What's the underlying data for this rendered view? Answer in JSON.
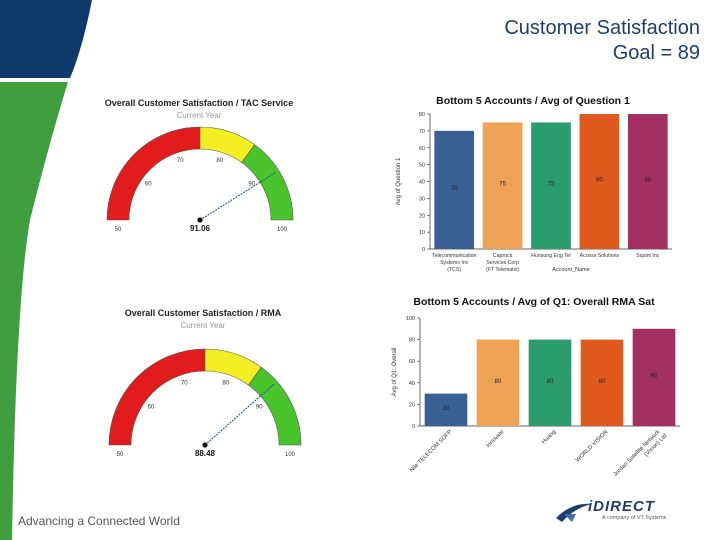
{
  "header": {
    "title_line1": "Customer Satisfaction",
    "title_line2": "Goal = 89"
  },
  "footer": {
    "tagline": "Advancing a Connected World"
  },
  "logo": {
    "brand": "iDIRECT",
    "subtitle": "A company of VT Systems"
  },
  "colors": {
    "navy": "#0d3a6b",
    "green_swoosh": "#3f9f3f",
    "red": "#e21c1c",
    "yellow": "#f3ef22",
    "green": "#49c42a"
  },
  "gauges": [
    {
      "title": "Overall Customer Satisfaction / TAC Service",
      "subtitle": "Current Year",
      "min": 50,
      "max": 100,
      "ticks": [
        "50",
        "60",
        "70",
        "80",
        "90",
        "100"
      ],
      "value": 91.06,
      "value_label": "91.06"
    },
    {
      "title": "Overall Customer Satisfaction / RMA",
      "subtitle": "Current Year",
      "min": 50,
      "max": 100,
      "ticks": [
        "50",
        "60",
        "70",
        "80",
        "90",
        "100"
      ],
      "value": 88.48,
      "value_label": "88.48"
    }
  ],
  "chart_data": [
    {
      "type": "bar",
      "title": "Bottom 5 Accounts / Avg of Question 1",
      "ylabel": "Avg of Question 1",
      "xlabel": "Account_Name",
      "ylim": [
        0,
        80
      ],
      "yticks": [
        0,
        10,
        20,
        30,
        40,
        50,
        60,
        70,
        80
      ],
      "categories": [
        "Telecommunication Systems Inc (TCS)",
        "Caprock Services Corp (FT Telematix)",
        "Hunsung Eng Tel",
        "Access Solutions",
        "Squint Inc"
      ],
      "category_lines": [
        [
          "Telecommunication",
          "Systems Inc",
          "(TCS)"
        ],
        [
          "Caprock",
          "Services Corp",
          "(FT Telematix)"
        ],
        [
          "Hunsung Eng Tel"
        ],
        [
          "Access Solutions"
        ],
        [
          "Squint Inc"
        ]
      ],
      "values": [
        70,
        75,
        75,
        80,
        80
      ],
      "value_labels": [
        "70",
        "75",
        "75",
        "80",
        "80"
      ],
      "colors": [
        "#3a6193",
        "#eda255",
        "#2a9c6e",
        "#e05a1e",
        "#a12f5f"
      ],
      "grid": false
    },
    {
      "type": "bar",
      "title": "Bottom 5 Accounts / Avg of Q1: Overall RMA Sat",
      "ylabel": "Avg of Q1: Overall",
      "ylim": [
        0,
        100
      ],
      "yticks": [
        0,
        20,
        40,
        60,
        80,
        100
      ],
      "categories": [
        "Nile TELECOM SOFP",
        "Innovate",
        "Huang",
        "WORLD VISION",
        "Jordan Satellite Network (Vision) Ltd"
      ],
      "category_lines": [
        [
          "Nile TELECOM SOFP"
        ],
        [
          "Innovate"
        ],
        [
          "Huang"
        ],
        [
          "WORLD VISION"
        ],
        [
          "Jordan Satellite Network",
          "(Vision) Ltd"
        ]
      ],
      "values": [
        30,
        80,
        80,
        80,
        90
      ],
      "value_labels": [
        "30",
        "80",
        "80",
        "80",
        "90"
      ],
      "colors": [
        "#3a6193",
        "#eda255",
        "#2a9c6e",
        "#e05a1e",
        "#a12f5f"
      ],
      "grid": false
    }
  ]
}
